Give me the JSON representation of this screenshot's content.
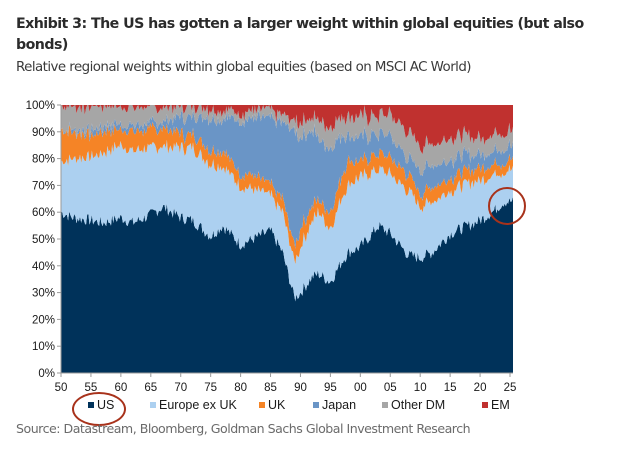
{
  "header": {
    "title": "Exhibit 3: The US has gotten a larger weight within global equities (but also bonds)",
    "subtitle": "Relative regional weights within global equities (based on MSCI AC World)"
  },
  "source": "Source: Datastream, Bloomberg, Goldman Sachs Global Investment Research",
  "chart_data": {
    "type": "area",
    "stacked": true,
    "title": "Relative regional weights within global equities (based on MSCI AC World)",
    "xlabel": "",
    "ylabel": "",
    "xlim": [
      1950,
      2025.5
    ],
    "ylim": [
      0,
      100
    ],
    "y_ticks": [
      "0%",
      "10%",
      "20%",
      "30%",
      "40%",
      "50%",
      "60%",
      "70%",
      "80%",
      "90%",
      "100%"
    ],
    "x_ticks": [
      "50",
      "55",
      "60",
      "65",
      "70",
      "75",
      "80",
      "85",
      "90",
      "95",
      "00",
      "05",
      "10",
      "15",
      "20",
      "25"
    ],
    "x_tick_values": [
      1950,
      1955,
      1960,
      1965,
      1970,
      1975,
      1980,
      1985,
      1990,
      1995,
      2000,
      2005,
      2010,
      2015,
      2020,
      2025
    ],
    "legend_position": "bottom",
    "grid": false,
    "x": [
      1950,
      1952,
      1955,
      1957,
      1960,
      1962,
      1965,
      1967,
      1970,
      1972,
      1975,
      1977,
      1980,
      1982,
      1985,
      1987,
      1989,
      1990,
      1992,
      1993,
      1995,
      1997,
      1998,
      2000,
      2002,
      2003,
      2005,
      2008,
      2010,
      2012,
      2015,
      2018,
      2020,
      2022,
      2024,
      2025.5
    ],
    "series": [
      {
        "name": "US",
        "color": "#00325a",
        "values": [
          60,
          58,
          57,
          56,
          58,
          56,
          59,
          62,
          58,
          57,
          51,
          55,
          48,
          50,
          53,
          45,
          28,
          30,
          36,
          37,
          34,
          42,
          45,
          47,
          52,
          55,
          52,
          44,
          43,
          45,
          52,
          55,
          57,
          60,
          64,
          64
        ]
      },
      {
        "name": "Europe ex UK",
        "color": "#acd0f0",
        "values": [
          19,
          22,
          24,
          26,
          27,
          27,
          25,
          23,
          26,
          27,
          27,
          22,
          22,
          19,
          13,
          15,
          13,
          17,
          21,
          23,
          20,
          24,
          26,
          26,
          23,
          21,
          22,
          24,
          19,
          19,
          16,
          16,
          15,
          14,
          11,
          12
        ]
      },
      {
        "name": "UK",
        "color": "#f58426",
        "values": [
          12,
          10,
          8,
          8,
          6,
          7,
          7,
          7,
          5,
          5,
          5,
          6,
          5,
          5,
          4,
          5,
          6,
          7,
          6,
          5,
          6,
          8,
          9,
          6,
          6,
          6,
          6,
          6,
          5,
          5,
          5,
          5,
          5,
          4,
          4,
          3
        ]
      },
      {
        "name": "Japan",
        "color": "#6a95c6",
        "values": [
          0,
          1,
          2,
          2,
          2,
          2,
          2.5,
          2.5,
          6,
          7,
          12,
          12,
          20,
          21,
          25,
          28,
          43,
          34,
          28,
          23,
          24,
          15,
          9,
          9,
          8,
          7,
          8,
          6,
          9,
          8,
          7,
          6,
          5,
          5,
          5,
          5
        ]
      },
      {
        "name": "Other DM",
        "color": "#a6a6a6",
        "values": [
          9,
          9,
          9,
          8,
          7,
          7,
          6,
          5,
          4.5,
          4,
          3.5,
          3,
          3,
          3,
          3,
          3,
          4,
          6,
          5,
          7,
          8,
          7,
          7,
          8,
          7,
          7,
          8,
          10,
          9,
          8,
          8,
          7,
          6,
          6,
          6,
          6
        ]
      },
      {
        "name": "EM",
        "color": "#c0312f",
        "values": [
          0,
          0,
          0,
          0,
          0,
          1,
          0.5,
          0.5,
          0.5,
          0,
          1.5,
          2,
          2,
          2,
          2,
          4,
          6,
          6,
          4,
          5,
          8,
          4,
          4,
          4,
          4,
          4,
          4,
          10,
          15,
          15,
          12,
          11,
          12,
          11,
          10,
          10
        ]
      }
    ]
  },
  "legend": [
    {
      "label": "US",
      "color": "#00325a"
    },
    {
      "label": "Europe ex UK",
      "color": "#acd0f0"
    },
    {
      "label": "UK",
      "color": "#f58426"
    },
    {
      "label": "Japan",
      "color": "#6a95c6"
    },
    {
      "label": "Other DM",
      "color": "#a6a6a6"
    },
    {
      "label": "EM",
      "color": "#c0312f"
    }
  ],
  "annotations": [
    {
      "type": "circle",
      "target": "US weight at end of series (2025)",
      "color": "#a8321b"
    },
    {
      "type": "circle",
      "target": "US legend entry",
      "color": "#a8321b"
    }
  ]
}
